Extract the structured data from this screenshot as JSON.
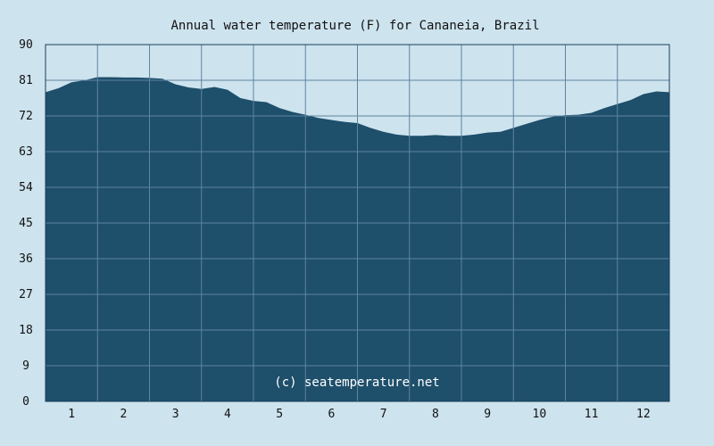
{
  "chart_data": {
    "type": "area",
    "title": "Annual water temperature (F) for Cananeia, Brazil",
    "xlabel": "",
    "ylabel": "",
    "xlim": [
      0.5,
      12.5
    ],
    "ylim": [
      0,
      90
    ],
    "x_ticks": [
      "1",
      "2",
      "3",
      "4",
      "5",
      "6",
      "7",
      "8",
      "9",
      "10",
      "11",
      "12"
    ],
    "y_ticks": [
      "0",
      "9",
      "18",
      "27",
      "36",
      "45",
      "54",
      "63",
      "72",
      "81",
      "90"
    ],
    "grid": true,
    "legend": "none",
    "watermark": "(c) seatemperature.net",
    "colors": {
      "background": "#cde3ee",
      "area_fill": "#1e4f6b",
      "grid": "#5f85a0",
      "plot_border": "#1a3f58"
    },
    "series": [
      {
        "x": [
          0.5,
          0.75,
          1.0,
          1.25,
          1.5,
          1.75,
          2.0,
          2.25,
          2.5,
          2.75,
          3.0,
          3.25,
          3.5,
          3.75,
          4.0,
          4.25,
          4.5,
          4.75,
          5.0,
          5.25,
          5.5,
          5.75,
          6.0,
          6.25,
          6.5,
          6.75,
          7.0,
          7.25,
          7.5,
          7.75,
          8.0,
          8.25,
          8.5,
          8.75,
          9.0,
          9.25,
          9.5,
          9.75,
          10.0,
          10.25,
          10.5,
          10.75,
          11.0,
          11.25,
          11.5,
          11.75,
          12.0,
          12.25,
          12.5
        ],
        "values": [
          78.0,
          79.0,
          80.5,
          81.0,
          81.8,
          81.8,
          81.7,
          81.7,
          81.6,
          81.4,
          80.0,
          79.2,
          78.8,
          79.3,
          78.6,
          76.5,
          75.8,
          75.5,
          74.0,
          73.0,
          72.3,
          71.5,
          71.0,
          70.5,
          70.2,
          69.0,
          68.0,
          67.3,
          67.0,
          67.0,
          67.2,
          67.0,
          67.0,
          67.3,
          67.8,
          68.0,
          69.0,
          70.0,
          71.0,
          71.8,
          72.2,
          72.3,
          72.8,
          74.0,
          75.0,
          76.0,
          77.5,
          78.2,
          78.0
        ]
      }
    ]
  }
}
